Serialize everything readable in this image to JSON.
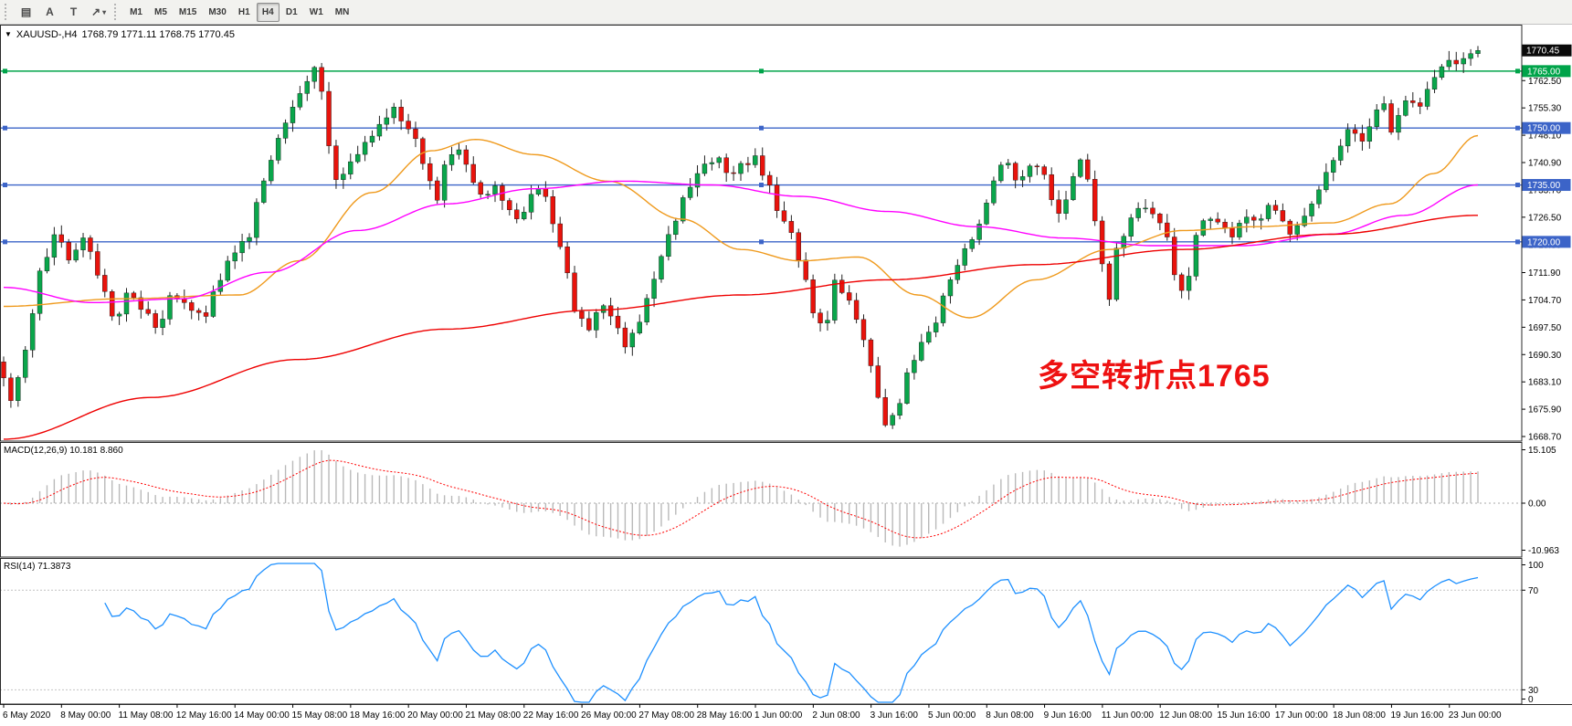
{
  "toolbar": {
    "tool_icons": [
      {
        "name": "chart-window-icon",
        "glyph": "▤"
      },
      {
        "name": "text-label-tool-icon",
        "glyph": "A"
      },
      {
        "name": "text-tool-icon",
        "glyph": "T"
      },
      {
        "name": "arrow-tool-icon",
        "glyph": "↗",
        "caret": "▾"
      }
    ],
    "timeframes": [
      "M1",
      "M5",
      "M15",
      "M30",
      "H1",
      "H4",
      "D1",
      "W1",
      "MN"
    ],
    "active_timeframe": "H4"
  },
  "chart": {
    "symbol_title": "XAUUSD-,H4",
    "ohlc_text": "1768.79 1771.11 1768.75 1770.45",
    "current_price_label": "1770.45",
    "annotation": {
      "text": "多空转折点1765",
      "color": "#ee1111"
    },
    "hlines": [
      {
        "price": 1765.0,
        "label": "1765.00",
        "color": "#00A44A"
      },
      {
        "price": 1750.0,
        "label": "1750.00",
        "color": "#3C64C8"
      },
      {
        "price": 1735.0,
        "label": "1735.00",
        "color": "#3C64C8"
      },
      {
        "price": 1720.0,
        "label": "1720.00",
        "color": "#3C64C8"
      }
    ],
    "price_axis_labels": [
      "1762.50",
      "1755.30",
      "1748.10",
      "1740.90",
      "1733.70",
      "1726.50",
      "1719.30",
      "1711.90",
      "1704.70",
      "1697.50",
      "1690.30",
      "1683.10",
      "1675.90",
      "1668.70"
    ]
  },
  "macd": {
    "label": "MACD(12,26,9)",
    "values": "10.181 8.860",
    "axis": [
      "15.105",
      "0.00",
      "-10.963"
    ]
  },
  "rsi": {
    "label": "RSI(14)",
    "value": "71.3873",
    "axis": [
      "100",
      "70",
      "30",
      "0"
    ],
    "levels": [
      70,
      30
    ]
  },
  "time_axis": {
    "labels": [
      "6 May 2020",
      "8 May 00:00",
      "11 May 08:00",
      "12 May 16:00",
      "14 May 00:00",
      "15 May 08:00",
      "18 May 16:00",
      "20 May 00:00",
      "21 May 08:00",
      "22 May 16:00",
      "26 May 00:00",
      "27 May 08:00",
      "28 May 16:00",
      "1 Jun 00:00",
      "2 Jun 08:00",
      "3 Jun 16:00",
      "5 Jun 00:00",
      "8 Jun 08:00",
      "9 Jun 16:00",
      "11 Jun 00:00",
      "12 Jun 08:00",
      "15 Jun 16:00",
      "17 Jun 00:00",
      "18 Jun 08:00",
      "19 Jun 16:00",
      "23 Jun 00:00"
    ]
  },
  "chart_data": {
    "type": "candlestick",
    "symbol": "XAUUSD",
    "timeframe": "H4",
    "bars": 205,
    "price_range": [
      1667.5,
      1777.0
    ],
    "ohlc": {
      "open": 1768.79,
      "high": 1771.11,
      "low": 1768.75,
      "close": 1770.45
    },
    "up_color": "#0AA64B",
    "down_color": "#E8130C",
    "price_waypoints": [
      [
        0.0,
        1689
      ],
      [
        0.01,
        1678
      ],
      [
        0.02,
        1692
      ],
      [
        0.03,
        1712
      ],
      [
        0.04,
        1722
      ],
      [
        0.05,
        1716
      ],
      [
        0.06,
        1721
      ],
      [
        0.07,
        1710
      ],
      [
        0.08,
        1700
      ],
      [
        0.09,
        1706
      ],
      [
        0.1,
        1701
      ],
      [
        0.11,
        1698
      ],
      [
        0.12,
        1706
      ],
      [
        0.13,
        1703
      ],
      [
        0.14,
        1700
      ],
      [
        0.15,
        1709
      ],
      [
        0.16,
        1717
      ],
      [
        0.17,
        1721
      ],
      [
        0.178,
        1731
      ],
      [
        0.186,
        1742
      ],
      [
        0.194,
        1750
      ],
      [
        0.202,
        1755
      ],
      [
        0.21,
        1763
      ],
      [
        0.216,
        1766
      ],
      [
        0.222,
        1758
      ],
      [
        0.228,
        1737
      ],
      [
        0.236,
        1738
      ],
      [
        0.244,
        1742
      ],
      [
        0.252,
        1747
      ],
      [
        0.26,
        1751
      ],
      [
        0.268,
        1755
      ],
      [
        0.276,
        1752
      ],
      [
        0.284,
        1747
      ],
      [
        0.292,
        1738
      ],
      [
        0.298,
        1731
      ],
      [
        0.306,
        1741
      ],
      [
        0.314,
        1745
      ],
      [
        0.322,
        1737
      ],
      [
        0.33,
        1731
      ],
      [
        0.338,
        1735
      ],
      [
        0.346,
        1729
      ],
      [
        0.354,
        1726
      ],
      [
        0.362,
        1732
      ],
      [
        0.37,
        1735
      ],
      [
        0.378,
        1724
      ],
      [
        0.386,
        1713
      ],
      [
        0.394,
        1701
      ],
      [
        0.402,
        1697
      ],
      [
        0.41,
        1703
      ],
      [
        0.418,
        1700
      ],
      [
        0.426,
        1693
      ],
      [
        0.434,
        1697
      ],
      [
        0.442,
        1706
      ],
      [
        0.45,
        1715
      ],
      [
        0.458,
        1723
      ],
      [
        0.466,
        1731
      ],
      [
        0.474,
        1737
      ],
      [
        0.482,
        1741
      ],
      [
        0.49,
        1742
      ],
      [
        0.498,
        1738
      ],
      [
        0.506,
        1740
      ],
      [
        0.514,
        1742
      ],
      [
        0.522,
        1736
      ],
      [
        0.53,
        1729
      ],
      [
        0.538,
        1722
      ],
      [
        0.546,
        1714
      ],
      [
        0.554,
        1701
      ],
      [
        0.562,
        1697
      ],
      [
        0.57,
        1710
      ],
      [
        0.578,
        1704
      ],
      [
        0.586,
        1697
      ],
      [
        0.592,
        1689
      ],
      [
        0.598,
        1678
      ],
      [
        0.604,
        1671
      ],
      [
        0.612,
        1677
      ],
      [
        0.62,
        1687
      ],
      [
        0.628,
        1694
      ],
      [
        0.636,
        1699
      ],
      [
        0.644,
        1707
      ],
      [
        0.652,
        1714
      ],
      [
        0.66,
        1721
      ],
      [
        0.668,
        1726
      ],
      [
        0.676,
        1736
      ],
      [
        0.684,
        1742
      ],
      [
        0.692,
        1737
      ],
      [
        0.7,
        1739
      ],
      [
        0.708,
        1741
      ],
      [
        0.716,
        1731
      ],
      [
        0.722,
        1727
      ],
      [
        0.73,
        1738
      ],
      [
        0.736,
        1742
      ],
      [
        0.742,
        1734
      ],
      [
        0.748,
        1718
      ],
      [
        0.754,
        1705
      ],
      [
        0.762,
        1720
      ],
      [
        0.77,
        1727
      ],
      [
        0.778,
        1730
      ],
      [
        0.786,
        1727
      ],
      [
        0.794,
        1722
      ],
      [
        0.8,
        1710
      ],
      [
        0.806,
        1707
      ],
      [
        0.814,
        1721
      ],
      [
        0.822,
        1727
      ],
      [
        0.83,
        1724
      ],
      [
        0.838,
        1722
      ],
      [
        0.846,
        1727
      ],
      [
        0.854,
        1725
      ],
      [
        0.862,
        1729
      ],
      [
        0.87,
        1727
      ],
      [
        0.878,
        1722
      ],
      [
        0.886,
        1727
      ],
      [
        0.894,
        1731
      ],
      [
        0.902,
        1738
      ],
      [
        0.91,
        1744
      ],
      [
        0.918,
        1750
      ],
      [
        0.926,
        1746
      ],
      [
        0.934,
        1753
      ],
      [
        0.94,
        1757
      ],
      [
        0.946,
        1748
      ],
      [
        0.952,
        1753
      ],
      [
        0.958,
        1758
      ],
      [
        0.964,
        1754
      ],
      [
        0.97,
        1760
      ],
      [
        0.977,
        1764
      ],
      [
        0.984,
        1768
      ],
      [
        0.991,
        1766
      ],
      [
        1.0,
        1770.4
      ]
    ],
    "ma_lines": [
      {
        "name": "fast-orange",
        "color": "#EF9A1D",
        "points": [
          [
            0,
            1703
          ],
          [
            0.08,
            1705
          ],
          [
            0.16,
            1706
          ],
          [
            0.2,
            1715
          ],
          [
            0.25,
            1733
          ],
          [
            0.29,
            1744
          ],
          [
            0.32,
            1747
          ],
          [
            0.36,
            1743
          ],
          [
            0.41,
            1736
          ],
          [
            0.46,
            1726
          ],
          [
            0.5,
            1718
          ],
          [
            0.54,
            1715
          ],
          [
            0.58,
            1716
          ],
          [
            0.62,
            1706
          ],
          [
            0.655,
            1700
          ],
          [
            0.7,
            1710
          ],
          [
            0.75,
            1718
          ],
          [
            0.8,
            1723
          ],
          [
            0.85,
            1724
          ],
          [
            0.9,
            1725
          ],
          [
            0.94,
            1730
          ],
          [
            0.97,
            1738
          ],
          [
            1,
            1748
          ]
        ]
      },
      {
        "name": "mid-magenta",
        "color": "#FF00FF",
        "points": [
          [
            0,
            1708
          ],
          [
            0.06,
            1704
          ],
          [
            0.12,
            1705
          ],
          [
            0.18,
            1712
          ],
          [
            0.24,
            1723
          ],
          [
            0.3,
            1730
          ],
          [
            0.36,
            1734
          ],
          [
            0.42,
            1736
          ],
          [
            0.48,
            1735
          ],
          [
            0.54,
            1732
          ],
          [
            0.6,
            1728
          ],
          [
            0.66,
            1724
          ],
          [
            0.72,
            1721
          ],
          [
            0.78,
            1719
          ],
          [
            0.84,
            1719
          ],
          [
            0.9,
            1722
          ],
          [
            0.95,
            1727
          ],
          [
            1,
            1735
          ]
        ]
      },
      {
        "name": "slow-red",
        "color": "#EE0000",
        "points": [
          [
            0,
            1668
          ],
          [
            0.1,
            1679
          ],
          [
            0.2,
            1689
          ],
          [
            0.3,
            1697
          ],
          [
            0.4,
            1702
          ],
          [
            0.5,
            1706
          ],
          [
            0.6,
            1710
          ],
          [
            0.7,
            1714
          ],
          [
            0.8,
            1718
          ],
          [
            0.9,
            1722
          ],
          [
            1,
            1727
          ]
        ]
      }
    ],
    "indicators": {
      "macd": {
        "fast": 12,
        "slow": 26,
        "signal": 9,
        "current_main": 10.181,
        "current_signal": 8.86,
        "axis_max": 15.105,
        "axis_min": -10.963
      },
      "rsi": {
        "period": 14,
        "current": 71.3873,
        "levels": [
          70,
          30
        ]
      }
    }
  }
}
